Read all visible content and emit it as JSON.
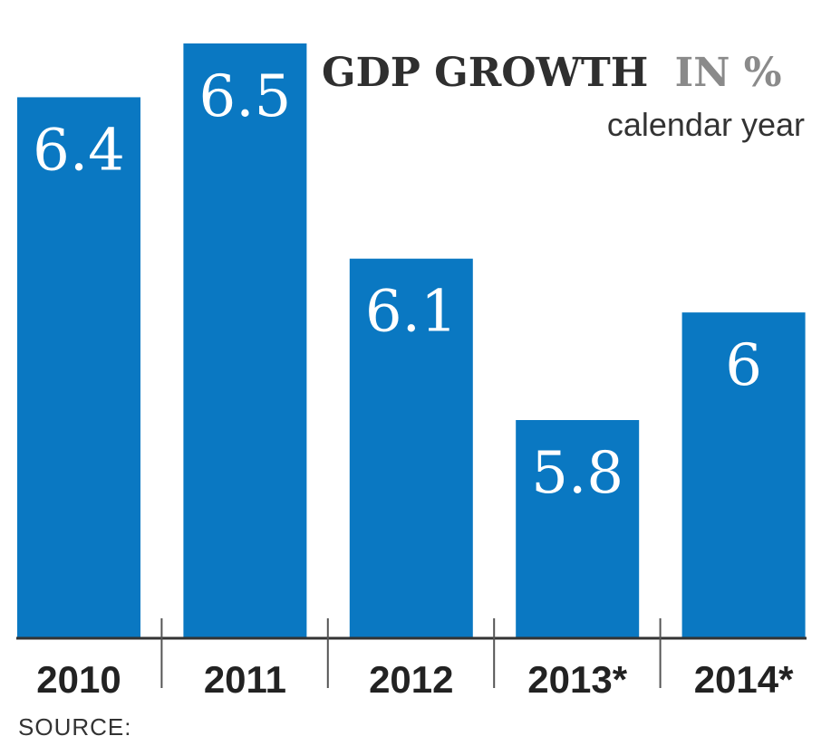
{
  "title": {
    "main": "GDP GROWTH",
    "unit": "IN %",
    "subtitle": "calendar year"
  },
  "source_label": "SOURCE:",
  "colors": {
    "bar": "#0a78c2",
    "baseline": "#333333",
    "separator": "#555555"
  },
  "chart_data": {
    "type": "bar",
    "title": "GDP GROWTH IN %",
    "subtitle": "calendar year",
    "categories": [
      "2010",
      "2011",
      "2012",
      "2013*",
      "2014*"
    ],
    "values": [
      6.4,
      6.5,
      6.1,
      5.8,
      6
    ],
    "value_labels": [
      "6.4",
      "6.5",
      "6.1",
      "5.8",
      "6"
    ],
    "xlabel": "",
    "ylabel": "",
    "grid": false,
    "legend": "none"
  }
}
